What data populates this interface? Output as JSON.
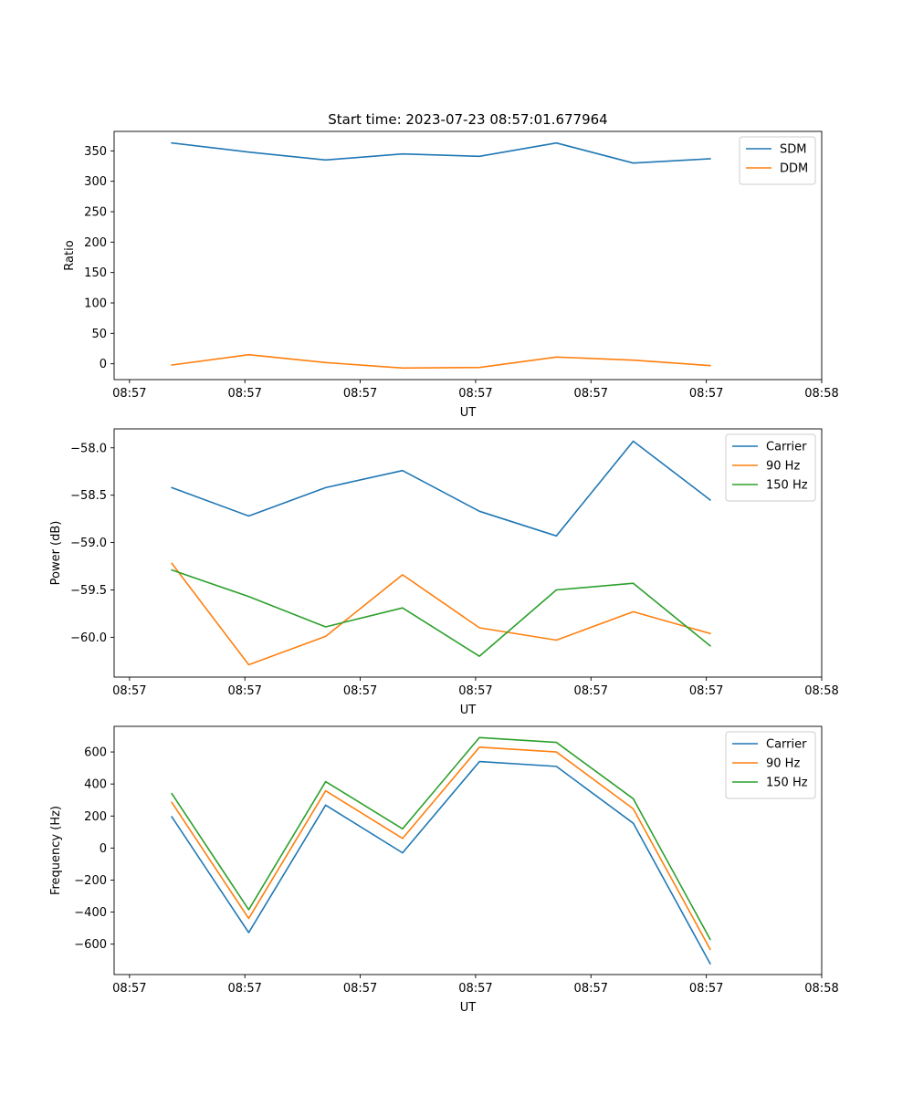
{
  "figure": {
    "title": "Start time: 2023-07-23 08:57:01.677964"
  },
  "chart_data": [
    {
      "type": "line",
      "id": "ratio",
      "xlabel": "UT",
      "ylabel": "Ratio",
      "x": [
        0,
        1,
        2,
        3,
        4,
        5,
        6,
        7
      ],
      "xlim": [
        -0.75,
        8.45
      ],
      "xtick_positions": [
        -0.55,
        0.95,
        2.45,
        3.95,
        5.45,
        6.95,
        8.45
      ],
      "xtick_labels": [
        "08:57",
        "08:57",
        "08:57",
        "08:57",
        "08:57",
        "08:57",
        "08:58"
      ],
      "ylim": [
        -26,
        382
      ],
      "yticks": [
        0,
        50,
        100,
        150,
        200,
        250,
        300,
        350
      ],
      "legend": "top-right",
      "series": [
        {
          "name": "SDM",
          "color": "#1f77b4",
          "values": [
            363,
            348,
            335,
            345,
            341,
            363,
            330,
            337
          ]
        },
        {
          "name": "DDM",
          "color": "#ff7f0e",
          "values": [
            -2,
            15,
            2,
            -7,
            -6,
            11,
            6,
            -3
          ]
        }
      ]
    },
    {
      "type": "line",
      "id": "power",
      "xlabel": "UT",
      "ylabel": "Power (dB)",
      "x": [
        0,
        1,
        2,
        3,
        4,
        5,
        6,
        7
      ],
      "xlim": [
        -0.75,
        8.45
      ],
      "xtick_positions": [
        -0.55,
        0.95,
        2.45,
        3.95,
        5.45,
        6.95,
        8.45
      ],
      "xtick_labels": [
        "08:57",
        "08:57",
        "08:57",
        "08:57",
        "08:57",
        "08:57",
        "08:58"
      ],
      "ylim": [
        -60.42,
        -57.8
      ],
      "yticks": [
        -60.0,
        -59.5,
        -59.0,
        -58.5,
        -58.0
      ],
      "ytick_labels": [
        "−60.0",
        "−59.5",
        "−59.0",
        "−58.5",
        "−58.0"
      ],
      "legend": "top-right",
      "series": [
        {
          "name": "Carrier",
          "color": "#1f77b4",
          "values": [
            -58.42,
            -58.72,
            -58.42,
            -58.24,
            -58.67,
            -58.93,
            -57.93,
            -58.55
          ]
        },
        {
          "name": "90 Hz",
          "color": "#ff7f0e",
          "values": [
            -59.22,
            -60.29,
            -59.99,
            -59.34,
            -59.9,
            -60.03,
            -59.73,
            -59.96
          ]
        },
        {
          "name": "150 Hz",
          "color": "#2ca02c",
          "values": [
            -59.29,
            -59.57,
            -59.89,
            -59.69,
            -60.2,
            -59.5,
            -59.43,
            -60.09
          ]
        }
      ]
    },
    {
      "type": "line",
      "id": "frequency",
      "xlabel": "UT",
      "ylabel": "Frequency (Hz)",
      "x": [
        0,
        1,
        2,
        3,
        4,
        5,
        6,
        7
      ],
      "xlim": [
        -0.75,
        8.45
      ],
      "xtick_positions": [
        -0.55,
        0.95,
        2.45,
        3.95,
        5.45,
        6.95,
        8.45
      ],
      "xtick_labels": [
        "08:57",
        "08:57",
        "08:57",
        "08:57",
        "08:57",
        "08:57",
        "08:58"
      ],
      "ylim": [
        -790,
        760
      ],
      "yticks": [
        -600,
        -400,
        -200,
        0,
        200,
        400,
        600
      ],
      "ytick_labels": [
        "−600",
        "−400",
        "−200",
        "0",
        "200",
        "400",
        "600"
      ],
      "legend": "top-right",
      "series": [
        {
          "name": "Carrier",
          "color": "#1f77b4",
          "values": [
            195,
            -528,
            268,
            -30,
            540,
            510,
            155,
            -722
          ]
        },
        {
          "name": "90 Hz",
          "color": "#ff7f0e",
          "values": [
            285,
            -440,
            358,
            60,
            630,
            600,
            245,
            -632
          ]
        },
        {
          "name": "150 Hz",
          "color": "#2ca02c",
          "values": [
            340,
            -385,
            415,
            120,
            690,
            660,
            308,
            -570
          ]
        }
      ]
    }
  ]
}
